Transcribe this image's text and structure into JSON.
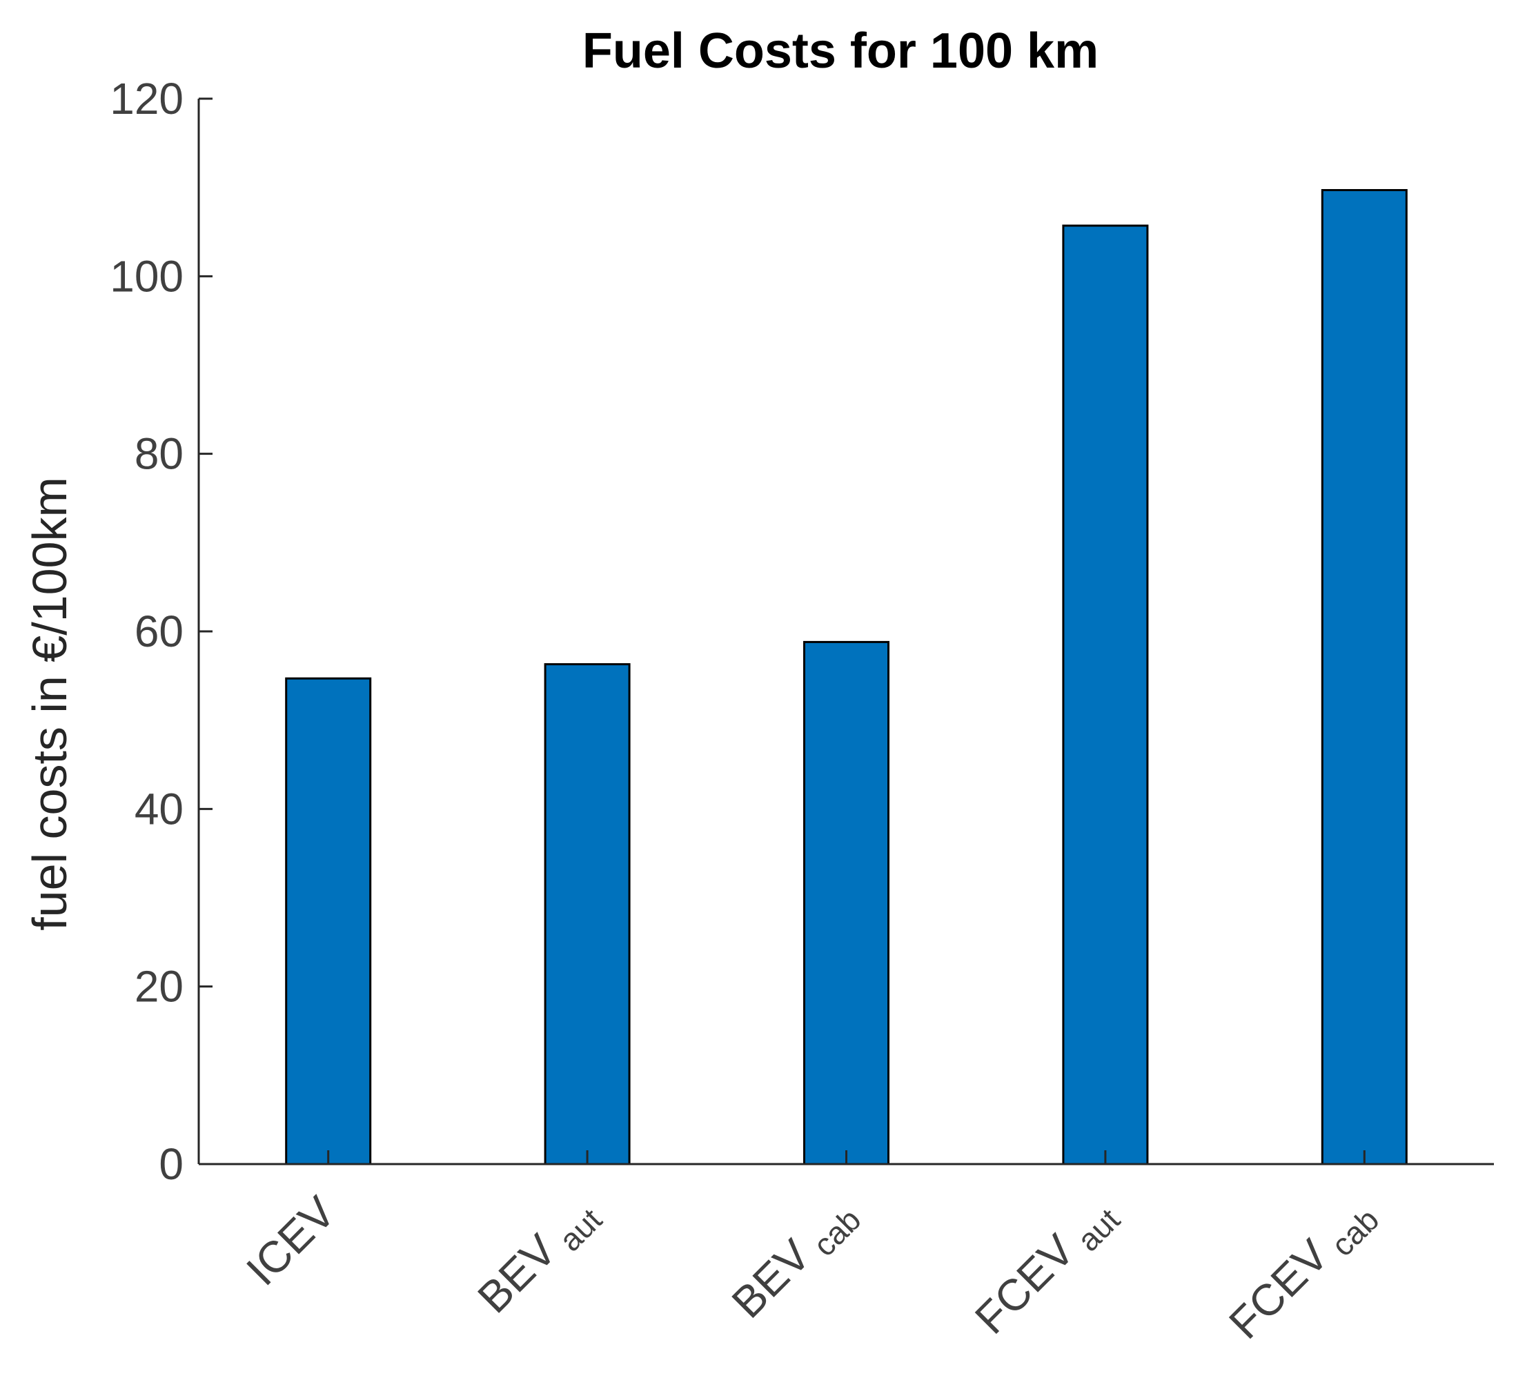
{
  "chart_data": {
    "type": "bar",
    "title": "Fuel Costs for 100 km",
    "xlabel": "",
    "ylabel": "fuel costs in €/100km",
    "ylim": [
      0,
      120
    ],
    "yticks": [
      0,
      20,
      40,
      60,
      80,
      100,
      120
    ],
    "grid": false,
    "legend": "none",
    "categories": [
      {
        "name": "ICEV",
        "sub": ""
      },
      {
        "name": "BEV",
        "sub": "aut"
      },
      {
        "name": "BEV",
        "sub": "cab"
      },
      {
        "name": "FCEV",
        "sub": "aut"
      },
      {
        "name": "FCEV",
        "sub": "cab"
      }
    ],
    "values": [
      54.7,
      56.3,
      58.8,
      105.7,
      109.7
    ],
    "bar_color": "#0072BD",
    "edge_color": "#000000"
  }
}
